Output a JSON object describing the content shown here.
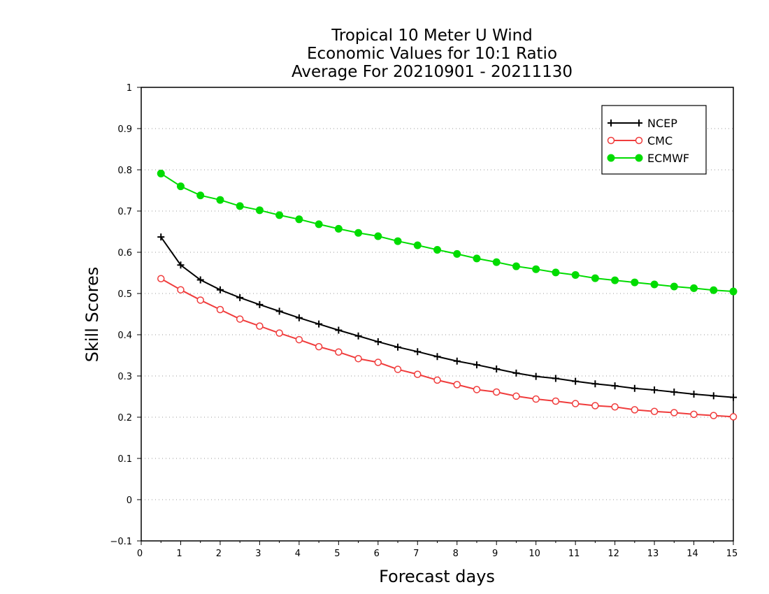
{
  "chart_data": {
    "type": "line",
    "title_lines": [
      "Tropical 10 Meter U Wind",
      "Economic Values for 10:1 Ratio",
      "Average For 20210901 - 20211130"
    ],
    "xlabel": "Forecast days",
    "ylabel": "Skill Scores",
    "xlim": [
      0,
      15
    ],
    "ylim": [
      -0.1,
      1
    ],
    "x_ticks": [
      "0",
      "1",
      "2",
      "3",
      "4",
      "5",
      "6",
      "7",
      "8",
      "9",
      "10",
      "11",
      "12",
      "13",
      "14",
      "15"
    ],
    "y_ticks": [
      "−0.1",
      "0",
      "0.1",
      "0.2",
      "0.3",
      "0.4",
      "0.5",
      "0.6",
      "0.7",
      "0.8",
      "0.9",
      "1"
    ],
    "grid": "horizontal dotted",
    "legend_position": "top-right",
    "x": [
      0.5,
      1,
      1.5,
      2,
      2.5,
      3,
      3.5,
      4,
      4.5,
      5,
      5.5,
      6,
      6.5,
      7,
      7.5,
      8,
      8.5,
      9,
      9.5,
      10,
      10.5,
      11,
      11.5,
      12,
      12.5,
      13,
      13.5,
      14,
      14.5,
      15
    ],
    "series": [
      {
        "name": "NCEP",
        "color": "#000000",
        "marker": "plus",
        "values": [
          0.637,
          0.569,
          0.533,
          0.509,
          0.49,
          0.473,
          0.457,
          0.441,
          0.426,
          0.411,
          0.397,
          0.383,
          0.37,
          0.359,
          0.347,
          0.336,
          0.327,
          0.317,
          0.307,
          0.299,
          0.294,
          0.287,
          0.281,
          0.276,
          0.27,
          0.266,
          0.261,
          0.256,
          0.252,
          0.248
        ]
      },
      {
        "name": "CMC",
        "color": "#f03c3c",
        "marker": "open-circle",
        "values": [
          0.536,
          0.509,
          0.484,
          0.461,
          0.438,
          0.421,
          0.404,
          0.388,
          0.371,
          0.358,
          0.342,
          0.333,
          0.316,
          0.304,
          0.29,
          0.279,
          0.267,
          0.261,
          0.251,
          0.244,
          0.239,
          0.233,
          0.228,
          0.225,
          0.218,
          0.214,
          0.211,
          0.207,
          0.204,
          0.201
        ]
      },
      {
        "name": "ECMWF",
        "color": "#00dc00",
        "marker": "filled-circle",
        "values": [
          0.791,
          0.76,
          0.738,
          0.727,
          0.712,
          0.702,
          0.69,
          0.68,
          0.668,
          0.657,
          0.647,
          0.639,
          0.627,
          0.617,
          0.606,
          0.596,
          0.585,
          0.576,
          0.566,
          0.559,
          0.551,
          0.545,
          0.537,
          0.532,
          0.527,
          0.522,
          0.517,
          0.513,
          0.508,
          0.505
        ]
      }
    ]
  }
}
